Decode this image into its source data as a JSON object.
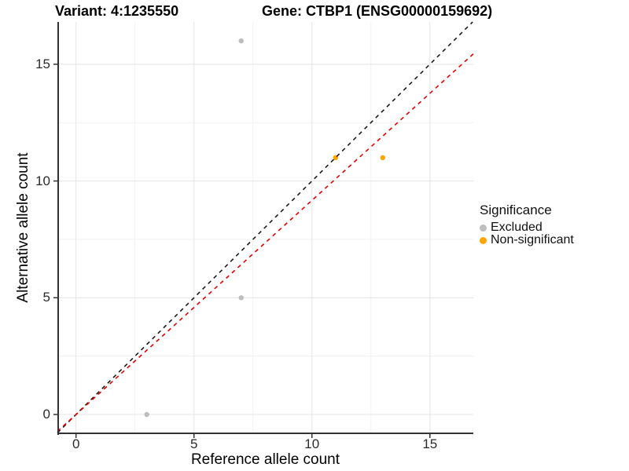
{
  "title": {
    "variant": "Variant: 4:1235550",
    "gene": "Gene: CTBP1 (ENSG00000159692)"
  },
  "axes": {
    "x_label": "Reference allele count",
    "y_label": "Alternative allele count"
  },
  "legend": {
    "title": "Significance",
    "items": [
      {
        "label": "Excluded",
        "color": "#bdbdbd"
      },
      {
        "label": "Non-significant",
        "color": "#ffa500"
      }
    ]
  },
  "colors": {
    "background": "#ffffff",
    "axis_line": "#333333",
    "tick_mark": "#333333",
    "tick_label": "#2b2b2b",
    "grid_major": "#e4e4e4",
    "grid_minor": "#f1f1f1",
    "identity_line": "#1a1a1a",
    "fit_line": "#e60000",
    "excluded_point": "#bdbdbd",
    "non_significant_point": "#ffa500"
  },
  "chart_data": {
    "type": "scatter",
    "title": "Variant: 4:1235550  Gene: CTBP1 (ENSG00000159692)",
    "xlabel": "Reference allele count",
    "ylabel": "Alternative allele count",
    "xlim": [
      -0.79,
      16.84
    ],
    "ylim": [
      -0.84,
      16.81
    ],
    "x_ticks": [
      0,
      5,
      10,
      15
    ],
    "y_ticks": [
      0,
      5,
      10,
      15
    ],
    "x_minor_ticks": [
      2.5,
      7.5,
      12.5
    ],
    "y_minor_ticks": [
      2.5,
      7.5,
      12.5
    ],
    "grid": true,
    "legend_position": "right",
    "series": [
      {
        "name": "Excluded",
        "color": "#bdbdbd",
        "points": [
          [
            3,
            0
          ],
          [
            7,
            5
          ],
          [
            7,
            16
          ]
        ]
      },
      {
        "name": "Non-significant",
        "color": "#ffa500",
        "points": [
          [
            11,
            11
          ],
          [
            13,
            11
          ]
        ]
      }
    ],
    "lines": [
      {
        "name": "identity",
        "slope": 1.0,
        "intercept": 0,
        "color": "#1a1a1a",
        "dash": "5,5"
      },
      {
        "name": "fit",
        "slope": 0.917,
        "intercept": 0,
        "color": "#e60000",
        "dash": "5,5"
      }
    ]
  }
}
